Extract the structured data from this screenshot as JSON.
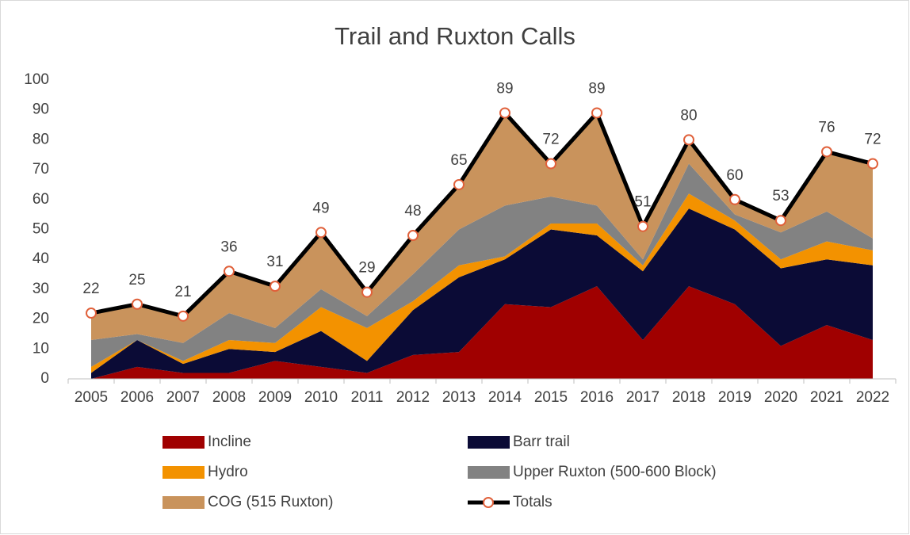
{
  "chart_data": {
    "type": "stacked_area",
    "title": "Trail and Ruxton Calls",
    "categories": [
      "2005",
      "2006",
      "2007",
      "2008",
      "2009",
      "2010",
      "2011",
      "2012",
      "2013",
      "2014",
      "2015",
      "2016",
      "2017",
      "2018",
      "2019",
      "2020",
      "2021",
      "2022"
    ],
    "ylim": [
      0,
      100
    ],
    "yticks": [
      0,
      10,
      20,
      30,
      40,
      50,
      60,
      70,
      80,
      90,
      100
    ],
    "grid": false,
    "series": [
      {
        "name": "Incline",
        "color": "#a00000",
        "values": [
          0,
          4,
          2,
          2,
          6,
          4,
          2,
          8,
          9,
          25,
          24,
          31,
          13,
          31,
          25,
          11,
          18,
          13
        ]
      },
      {
        "name": "Barr trail",
        "color": "#0b0b36",
        "values": [
          2,
          9,
          3,
          8,
          3,
          12,
          4,
          15,
          25,
          15,
          26,
          17,
          23,
          26,
          25,
          26,
          22,
          25
        ]
      },
      {
        "name": "Hydro",
        "color": "#f39200",
        "values": [
          2,
          0,
          1,
          3,
          3,
          8,
          11,
          3,
          4,
          1,
          2,
          4,
          2,
          5,
          3,
          3,
          6,
          5
        ]
      },
      {
        "name": "Upper Ruxton (500-600 Block)",
        "color": "#828282",
        "values": [
          9,
          2,
          6,
          9,
          5,
          6,
          4,
          9,
          12,
          17,
          9,
          6,
          2,
          10,
          2,
          9,
          10,
          4
        ]
      },
      {
        "name": "COG (515 Ruxton)",
        "color": "#c9935c",
        "values": [
          9,
          10,
          9,
          14,
          14,
          19,
          8,
          13,
          15,
          31,
          11,
          31,
          11,
          8,
          5,
          4,
          20,
          25
        ]
      },
      {
        "name": "Totals",
        "type": "line",
        "color": "#000000",
        "marker_color": "#e0603a",
        "values": [
          22,
          25,
          21,
          36,
          31,
          49,
          29,
          48,
          65,
          89,
          72,
          89,
          51,
          80,
          60,
          53,
          76,
          72
        ]
      }
    ]
  }
}
